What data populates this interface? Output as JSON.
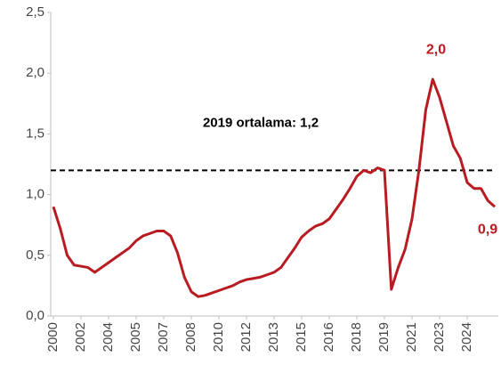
{
  "chart_data": {
    "type": "line",
    "categories": [
      "2000",
      null,
      null,
      null,
      "2002",
      null,
      null,
      null,
      "2004",
      null,
      null,
      null,
      "2005",
      null,
      null,
      null,
      "2007",
      null,
      null,
      null,
      "2008",
      null,
      null,
      null,
      "2010",
      null,
      null,
      null,
      "2012",
      null,
      null,
      null,
      "2013",
      null,
      null,
      null,
      "2015",
      null,
      null,
      null,
      "2016",
      null,
      null,
      null,
      "2018",
      null,
      null,
      null,
      "2019",
      null,
      null,
      null,
      "2021",
      null,
      null,
      null,
      "2023",
      null,
      null,
      null,
      "2024",
      null,
      null,
      null,
      null
    ],
    "series": [
      {
        "color": "#b81c22",
        "values": [
          0.9,
          0.72,
          0.5,
          0.42,
          0.41,
          0.4,
          0.36,
          0.4,
          0.44,
          0.48,
          0.52,
          0.56,
          0.62,
          0.66,
          0.68,
          0.7,
          0.7,
          0.66,
          0.52,
          0.32,
          0.2,
          0.16,
          0.17,
          0.19,
          0.21,
          0.23,
          0.25,
          0.28,
          0.3,
          0.31,
          0.32,
          0.34,
          0.36,
          0.4,
          0.48,
          0.56,
          0.65,
          0.7,
          0.74,
          0.76,
          0.8,
          0.88,
          0.96,
          1.05,
          1.15,
          1.2,
          1.18,
          1.22,
          1.2,
          0.22,
          0.4,
          0.55,
          0.8,
          1.2,
          1.7,
          1.95,
          1.8,
          1.6,
          1.4,
          1.3,
          1.1,
          1.05,
          1.05,
          0.95,
          0.9
        ]
      }
    ],
    "ylim": [
      0,
      2.5
    ],
    "yticks": [
      {
        "value": 0,
        "label": "0,0"
      },
      {
        "value": 0.5,
        "label": "0,5"
      },
      {
        "value": 1,
        "label": "1,0"
      },
      {
        "value": 1.5,
        "label": "1,5"
      },
      {
        "value": 2,
        "label": "2,0"
      },
      {
        "value": 2.5,
        "label": "2,5"
      }
    ],
    "reference": {
      "value": 1.2,
      "label": "2019 ortalama: 1,2"
    },
    "annotations": [
      {
        "label": "2,0",
        "value": 2.0
      },
      {
        "label": "0,9",
        "value": 0.9
      }
    ]
  }
}
